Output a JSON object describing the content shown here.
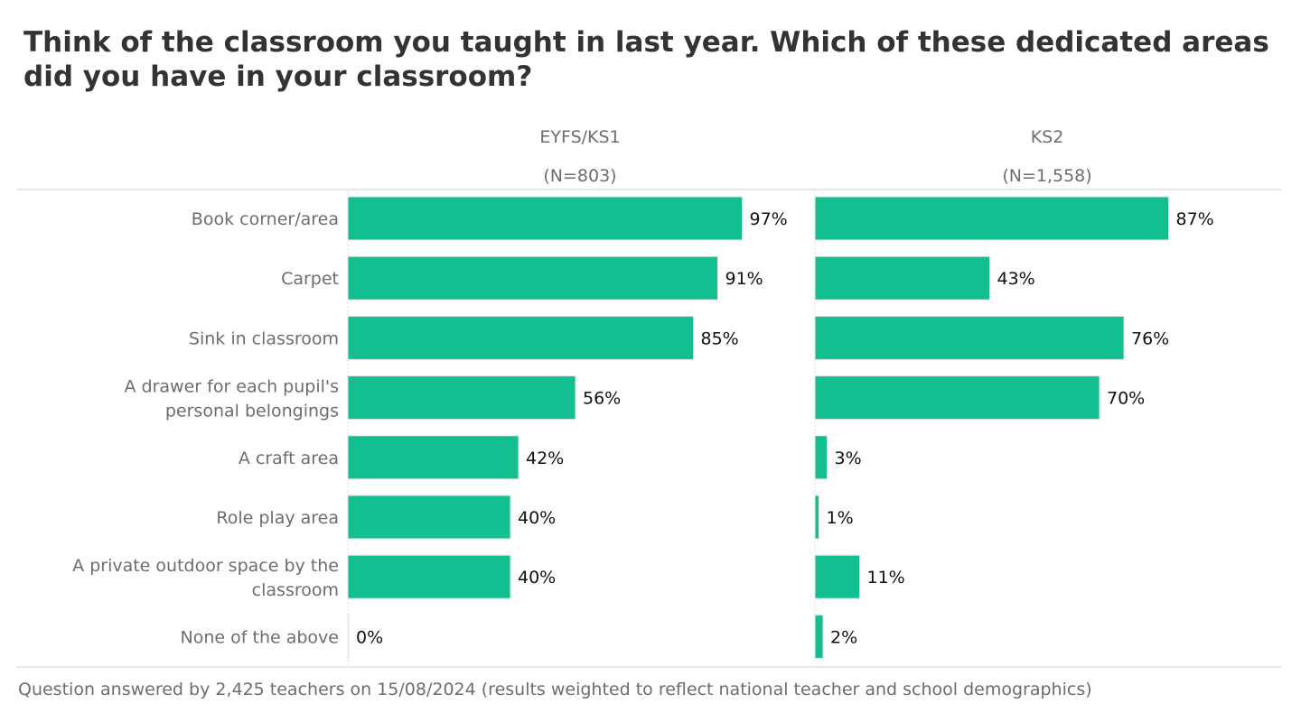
{
  "colors": {
    "bar": "#13be90",
    "bar_edge": "#e6e6e6",
    "rule": "#cfcfcf"
  },
  "chart_data": {
    "type": "bar",
    "orientation": "horizontal",
    "title": "Think of the classroom you taught in last year. Which of these dedicated areas did you have in your classroom?",
    "categories": [
      "Book corner/area",
      "Carpet",
      "Sink in classroom",
      "A drawer for each pupil's personal belongings",
      "A craft area",
      "Role play area",
      "A private outdoor space by the classroom",
      "None of the above"
    ],
    "series": [
      {
        "name": "EYFS/KS1",
        "sample": "(N=803)",
        "values": [
          97,
          91,
          85,
          56,
          42,
          40,
          40,
          0
        ]
      },
      {
        "name": "KS2",
        "sample": "(N=1,558)",
        "values": [
          87,
          43,
          76,
          70,
          3,
          1,
          11,
          2
        ]
      }
    ],
    "value_suffix": "%",
    "xlim": [
      0,
      100
    ],
    "footnote": "Question answered by 2,425 teachers on 15/08/2024 (results weighted to reflect national teacher and school demographics)"
  }
}
